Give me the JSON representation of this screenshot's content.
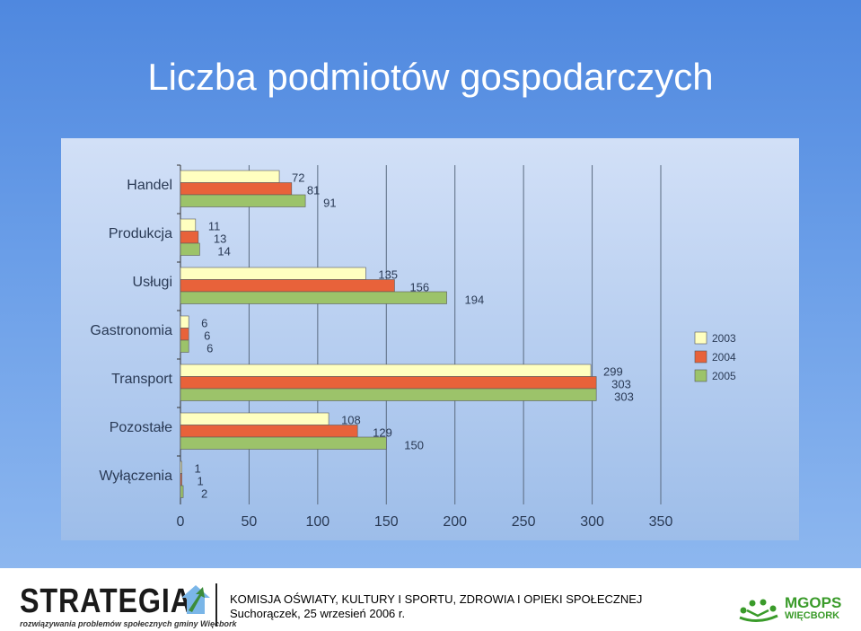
{
  "title": "Liczba podmiotów gospodarczych",
  "chart_data": {
    "type": "bar",
    "orientation": "horizontal",
    "categories": [
      "Handel",
      "Produkcja",
      "Usługi",
      "Gastronomia",
      "Transport",
      "Pozostałe",
      "Wyłączenia"
    ],
    "series": [
      {
        "name": "2003",
        "values": [
          72,
          11,
          135,
          6,
          299,
          108,
          1
        ],
        "color": "#ffffc0"
      },
      {
        "name": "2004",
        "values": [
          81,
          13,
          156,
          6,
          303,
          129,
          1
        ],
        "color": "#e8623a"
      },
      {
        "name": "2005",
        "values": [
          91,
          14,
          194,
          6,
          303,
          150,
          2
        ],
        "color": "#9cc36a"
      }
    ],
    "xlim": [
      0,
      350
    ],
    "xticks": [
      0,
      50,
      100,
      150,
      200,
      250,
      300,
      350
    ],
    "xlabel": "",
    "ylabel": "",
    "grid": "vertical",
    "legend": "right"
  },
  "footer": {
    "logo_word": "STRATEGIA",
    "logo_subtitle": "rozwiązywania problemów społecznych gminy Więcbork",
    "commission": "KOMISJA OŚWIATY, KULTURY I SPORTU, ZDROWIA I OPIEKI SPOŁECZNEJ",
    "meeting": "Suchorączek, 25 wrzesień 2006 r.",
    "mgops_name": "MGOPS",
    "mgops_town": "WIĘCBORK",
    "logo_icon": "house-arrow-icon",
    "mgops_icon": "people-circle-icon"
  }
}
